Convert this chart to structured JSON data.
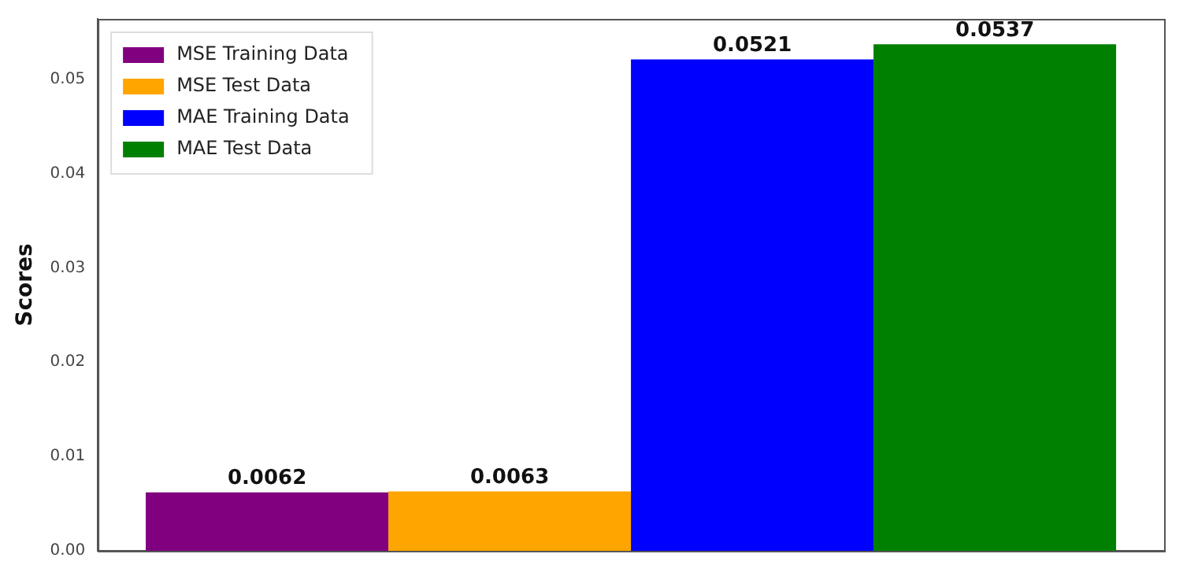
{
  "chart_data": {
    "type": "bar",
    "ylabel": "Scores",
    "categories": [
      null
    ],
    "series": [
      {
        "name": "MSE Training Data",
        "color": "#800080",
        "values": [
          0.0062
        ]
      },
      {
        "name": "MSE Test Data",
        "color": "#ffa500",
        "values": [
          0.0063
        ]
      },
      {
        "name": "MAE Training Data",
        "color": "#0000ff",
        "values": [
          0.0521
        ]
      },
      {
        "name": "MAE Test Data",
        "color": "#008000",
        "values": [
          0.0537
        ]
      }
    ],
    "ylim": [
      0,
      0.0564
    ],
    "yticks": [
      {
        "value": 0,
        "label": "0.00"
      },
      {
        "value": 0.01,
        "label": "0.01"
      },
      {
        "value": 0.02,
        "label": "0.02"
      },
      {
        "value": 0.03,
        "label": "0.03"
      },
      {
        "value": 0.04,
        "label": "0.04"
      },
      {
        "value": 0.05,
        "label": "0.05"
      }
    ],
    "data_labels": true,
    "legend": "top left",
    "grid": false
  }
}
